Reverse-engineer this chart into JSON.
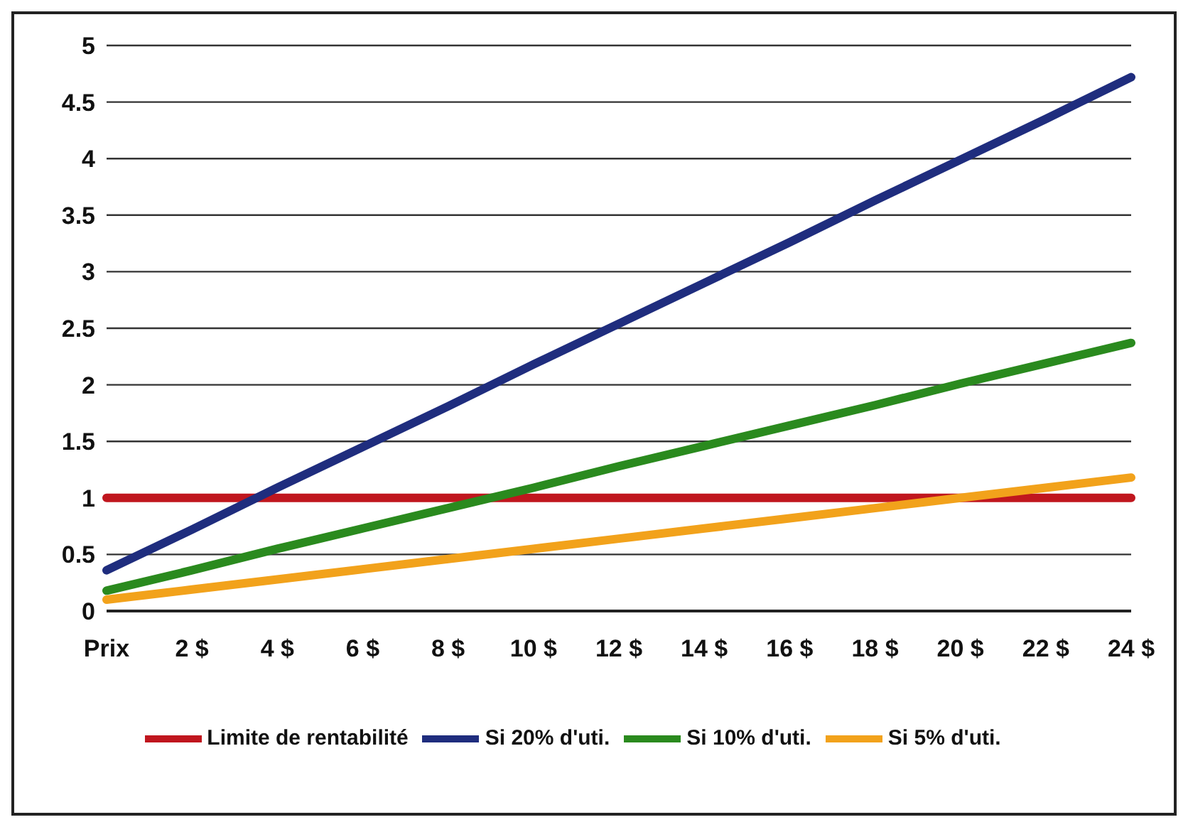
{
  "chart_data": {
    "type": "line",
    "categories": [
      "Prix",
      "2 $",
      "4 $",
      "6 $",
      "8 $",
      "10 $",
      "12 $",
      "14 $",
      "16 $",
      "18 $",
      "20 $",
      "22 $",
      "24 $"
    ],
    "series": [
      {
        "name": "Limite de rentabilité",
        "color": "#c0161e",
        "values": [
          1,
          1,
          1,
          1,
          1,
          1,
          1,
          1,
          1,
          1,
          1,
          1,
          1
        ]
      },
      {
        "name": "Si 20% d'uti.",
        "color": "#1f2d7e",
        "values": [
          0.36,
          0.72,
          1.09,
          1.45,
          1.81,
          2.18,
          2.54,
          2.9,
          3.26,
          3.63,
          3.99,
          4.35,
          4.72
        ]
      },
      {
        "name": "Si 10% d'uti.",
        "color": "#2a8a1e",
        "values": [
          0.18,
          0.36,
          0.55,
          0.73,
          0.91,
          1.09,
          1.28,
          1.46,
          1.64,
          1.82,
          2.01,
          2.19,
          2.37
        ]
      },
      {
        "name": "Si 5% d'uti.",
        "color": "#f2a21b",
        "values": [
          0.1,
          0.19,
          0.28,
          0.37,
          0.46,
          0.55,
          0.64,
          0.73,
          0.82,
          0.91,
          1.0,
          1.09,
          1.18
        ]
      }
    ],
    "ylim": [
      0,
      5
    ],
    "yticks": [
      0,
      0.5,
      1,
      1.5,
      2,
      2.5,
      3,
      3.5,
      4,
      4.5,
      5
    ],
    "grid": "y",
    "legend": "bottom",
    "marker": "none",
    "line_style": "solid"
  }
}
